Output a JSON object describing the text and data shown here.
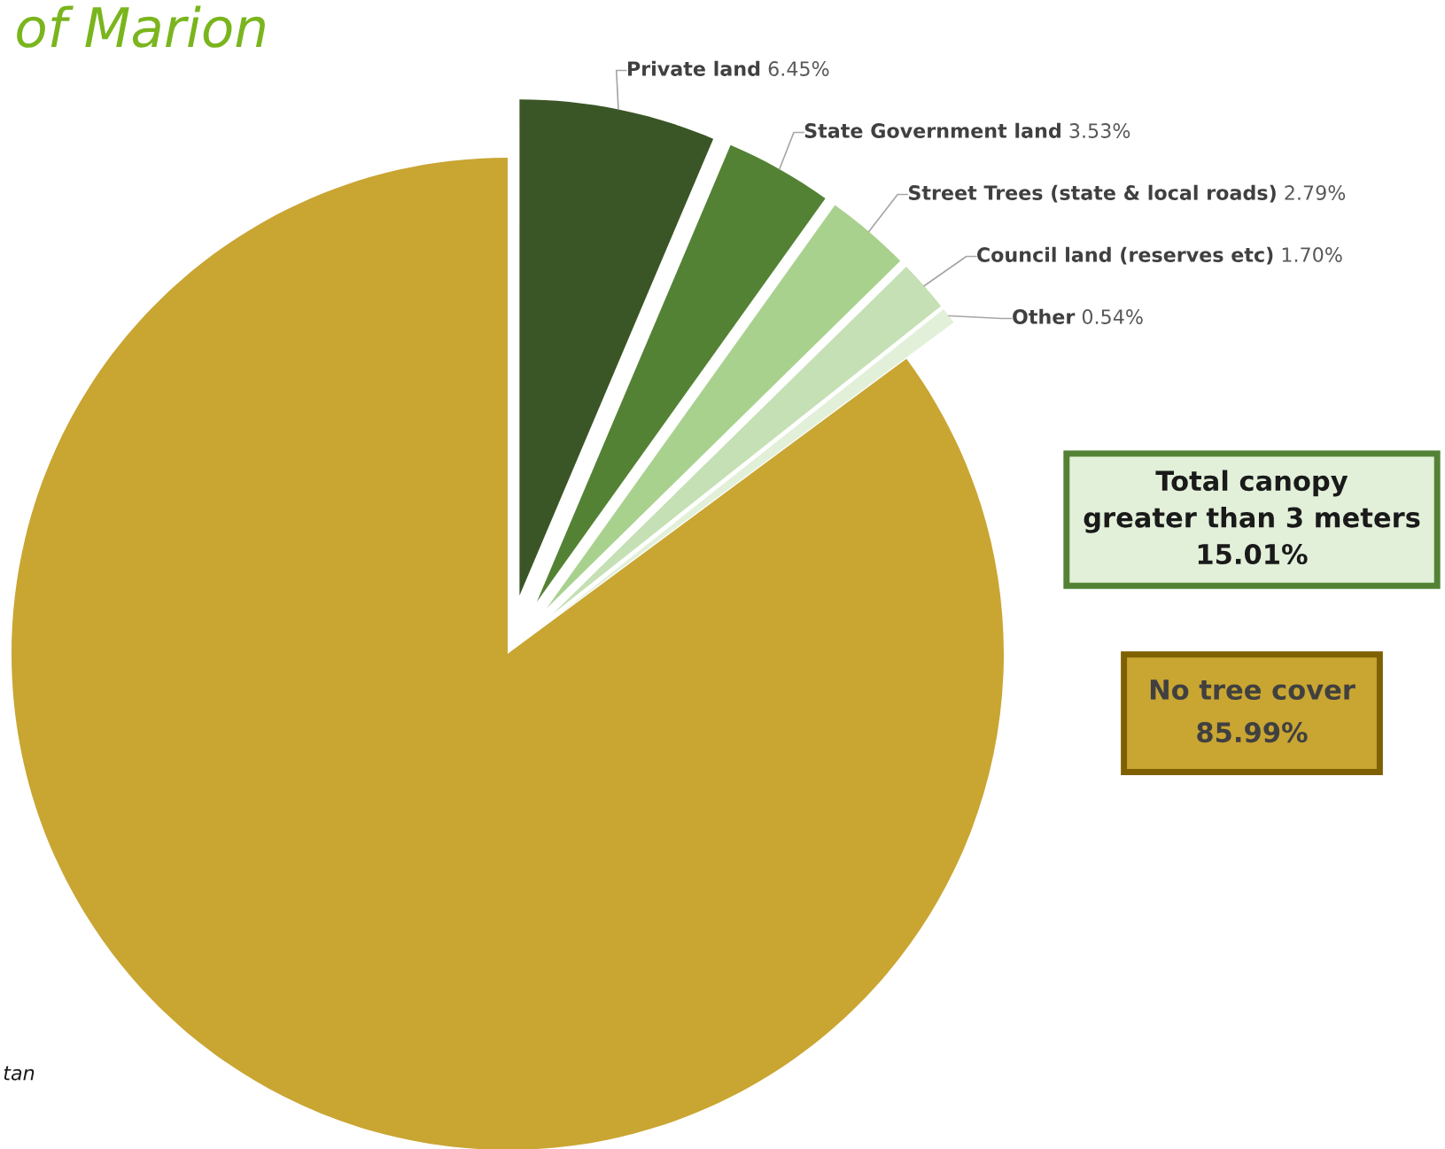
{
  "chart_data": {
    "type": "pie",
    "title": "of Marion",
    "categories": [
      "Private land",
      "State Government land",
      "Street Trees (state & local roads)",
      "Council land (reserves etc)",
      "Other",
      "No tree cover"
    ],
    "values": [
      6.45,
      3.53,
      2.79,
      1.7,
      0.54,
      85.99
    ],
    "value_labels": [
      "6.45%",
      "3.53%",
      "2.79%",
      "1.70%",
      "0.54%",
      "85.99%"
    ],
    "colors": [
      "#3a5626",
      "#548235",
      "#a9d18e",
      "#c5e0b4",
      "#e2f0d9",
      "#c9a532"
    ],
    "annotations": [
      "Total canopy\ngreater than 3 meters\n15.01%",
      "tan"
    ],
    "legend": false
  }
}
